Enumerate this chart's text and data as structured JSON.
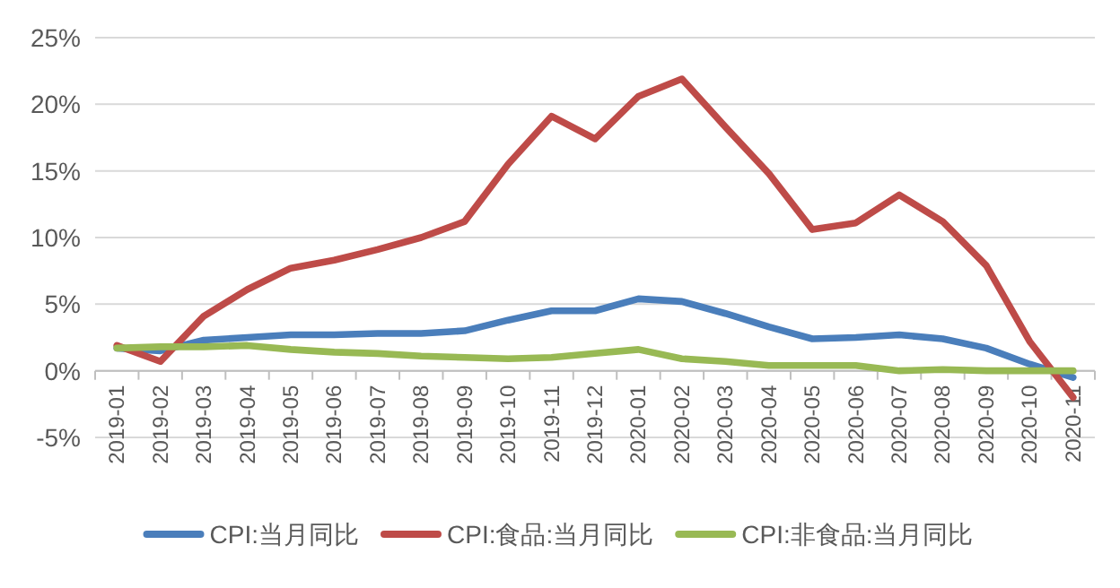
{
  "chart_data": {
    "type": "line",
    "categories": [
      "2019-01",
      "2019-02",
      "2019-03",
      "2019-04",
      "2019-05",
      "2019-06",
      "2019-07",
      "2019-08",
      "2019-09",
      "2019-10",
      "2019-11",
      "2019-12",
      "2020-01",
      "2020-02",
      "2020-03",
      "2020-04",
      "2020-05",
      "2020-06",
      "2020-07",
      "2020-08",
      "2020-09",
      "2020-10",
      "2020-11"
    ],
    "series": [
      {
        "name": "CPI:当月同比",
        "color": "#4a7ebb",
        "values": [
          1.7,
          1.5,
          2.3,
          2.5,
          2.7,
          2.7,
          2.8,
          2.8,
          3.0,
          3.8,
          4.5,
          4.5,
          5.4,
          5.2,
          4.3,
          3.3,
          2.4,
          2.5,
          2.7,
          2.4,
          1.7,
          0.5,
          -0.5
        ]
      },
      {
        "name": "CPI:食品:当月同比",
        "color": "#be4b48",
        "values": [
          1.9,
          0.7,
          4.1,
          6.1,
          7.7,
          8.3,
          9.1,
          10.0,
          11.2,
          15.5,
          19.1,
          17.4,
          20.6,
          21.9,
          18.3,
          14.8,
          10.6,
          11.1,
          13.2,
          11.2,
          7.9,
          2.2,
          -2.0
        ]
      },
      {
        "name": "CPI:非食品:当月同比",
        "color": "#98b954",
        "values": [
          1.7,
          1.8,
          1.8,
          1.9,
          1.6,
          1.4,
          1.3,
          1.1,
          1.0,
          0.9,
          1.0,
          1.3,
          1.6,
          0.9,
          0.7,
          0.4,
          0.4,
          0.4,
          0.0,
          0.1,
          0.0,
          0.0,
          0.0
        ]
      }
    ],
    "ylim": [
      -5,
      25
    ],
    "yticks": [
      {
        "value": -5,
        "label": "-5%"
      },
      {
        "value": 0,
        "label": "0%"
      },
      {
        "value": 5,
        "label": "5%"
      },
      {
        "value": 10,
        "label": "10%"
      },
      {
        "value": 15,
        "label": "15%"
      },
      {
        "value": 20,
        "label": "20%"
      },
      {
        "value": 25,
        "label": "25%"
      }
    ],
    "grid": "y",
    "legend": "bottom",
    "marker": "none",
    "line_style": "solid"
  }
}
